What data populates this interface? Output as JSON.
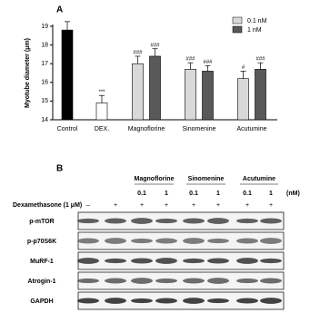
{
  "chart_data": {
    "type": "bar",
    "panel_label": "A",
    "ylabel": "Myotube diameter (μm)",
    "categories": [
      "Control",
      "DEX.",
      "Magnoflorine",
      "Sinomenine",
      "Acutumine"
    ],
    "ylim": [
      14,
      19
    ],
    "yticks": [
      14,
      15,
      16,
      17,
      18,
      19
    ],
    "single": {
      "colors": [
        "#000000",
        "#ffffff",
        null,
        null,
        null
      ],
      "values": [
        18.8,
        14.9,
        null,
        null,
        null
      ],
      "errors": [
        0.45,
        0.4,
        null,
        null,
        null
      ],
      "annotations": [
        null,
        "***",
        null,
        null,
        null
      ]
    },
    "series": [
      {
        "name": "0.1 nM",
        "color": "#d9d9d9",
        "values": [
          null,
          null,
          17.0,
          16.7,
          16.2
        ],
        "errors": [
          null,
          null,
          0.4,
          0.35,
          0.4
        ],
        "annotations": [
          null,
          null,
          "###",
          "###",
          "#"
        ]
      },
      {
        "name": "1 nM",
        "color": "#595959",
        "values": [
          null,
          null,
          17.4,
          16.6,
          16.7
        ],
        "errors": [
          null,
          null,
          0.4,
          0.3,
          0.35
        ],
        "annotations": [
          null,
          null,
          "###",
          "###",
          "###"
        ]
      }
    ]
  },
  "blot": {
    "panel_label": "B",
    "groups": [
      "Magnoflorine",
      "Sinomenine",
      "Acutumine"
    ],
    "doses": [
      "0.1",
      "1",
      "0.1",
      "1",
      "0.1",
      "1"
    ],
    "unit": "(nM)",
    "treatment_label": "Dexamethasone (1 μM)",
    "treatment": [
      "–",
      "+",
      "+",
      "+",
      "+",
      "+",
      "+",
      "+"
    ],
    "proteins": [
      "p-mTOR",
      "p-p70S6K",
      "MuRF-1",
      "Atrogin-1",
      "GAPDH"
    ]
  }
}
